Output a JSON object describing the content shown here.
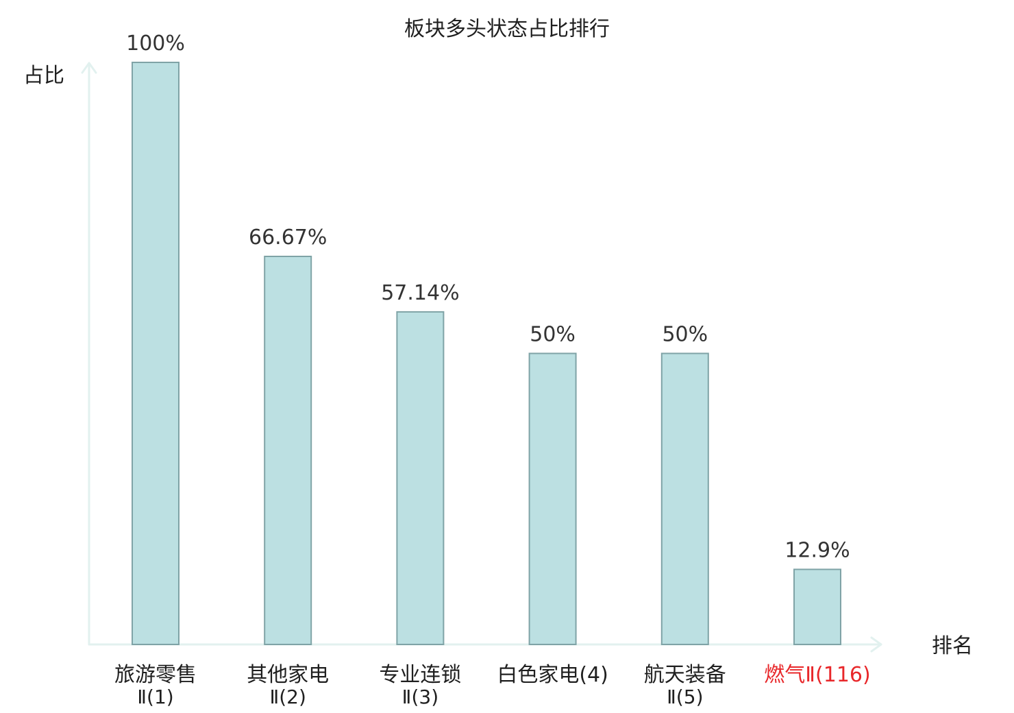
{
  "chart_data": {
    "type": "bar",
    "title": "板块多头状态占比排行",
    "ylabel": "占比",
    "xlabel": "排名",
    "ylim": [
      0,
      100
    ],
    "grid": false,
    "categories": [
      {
        "main": "旅游零售",
        "sub": "Ⅱ(1)",
        "highlight": false
      },
      {
        "main": "其他家电",
        "sub": "Ⅱ(2)",
        "highlight": false
      },
      {
        "main": "专业连锁",
        "sub": "Ⅱ(3)",
        "highlight": false
      },
      {
        "main": "白色家电(4)",
        "sub": "",
        "highlight": false
      },
      {
        "main": "航天装备",
        "sub": "Ⅱ(5)",
        "highlight": false
      },
      {
        "main": "燃气Ⅱ(116)",
        "sub": "",
        "highlight": true
      }
    ],
    "values": [
      100,
      66.67,
      57.14,
      50,
      50,
      12.9
    ],
    "value_labels": [
      "100%",
      "66.67%",
      "57.14%",
      "50%",
      "50%",
      "12.9%"
    ]
  },
  "colors": {
    "bar_fill": "#bce0e2",
    "bar_stroke": "#7fa3a6",
    "axis": "#e2f1ef",
    "label_text": "#1f1f1f",
    "highlight_text": "#e8272a"
  }
}
